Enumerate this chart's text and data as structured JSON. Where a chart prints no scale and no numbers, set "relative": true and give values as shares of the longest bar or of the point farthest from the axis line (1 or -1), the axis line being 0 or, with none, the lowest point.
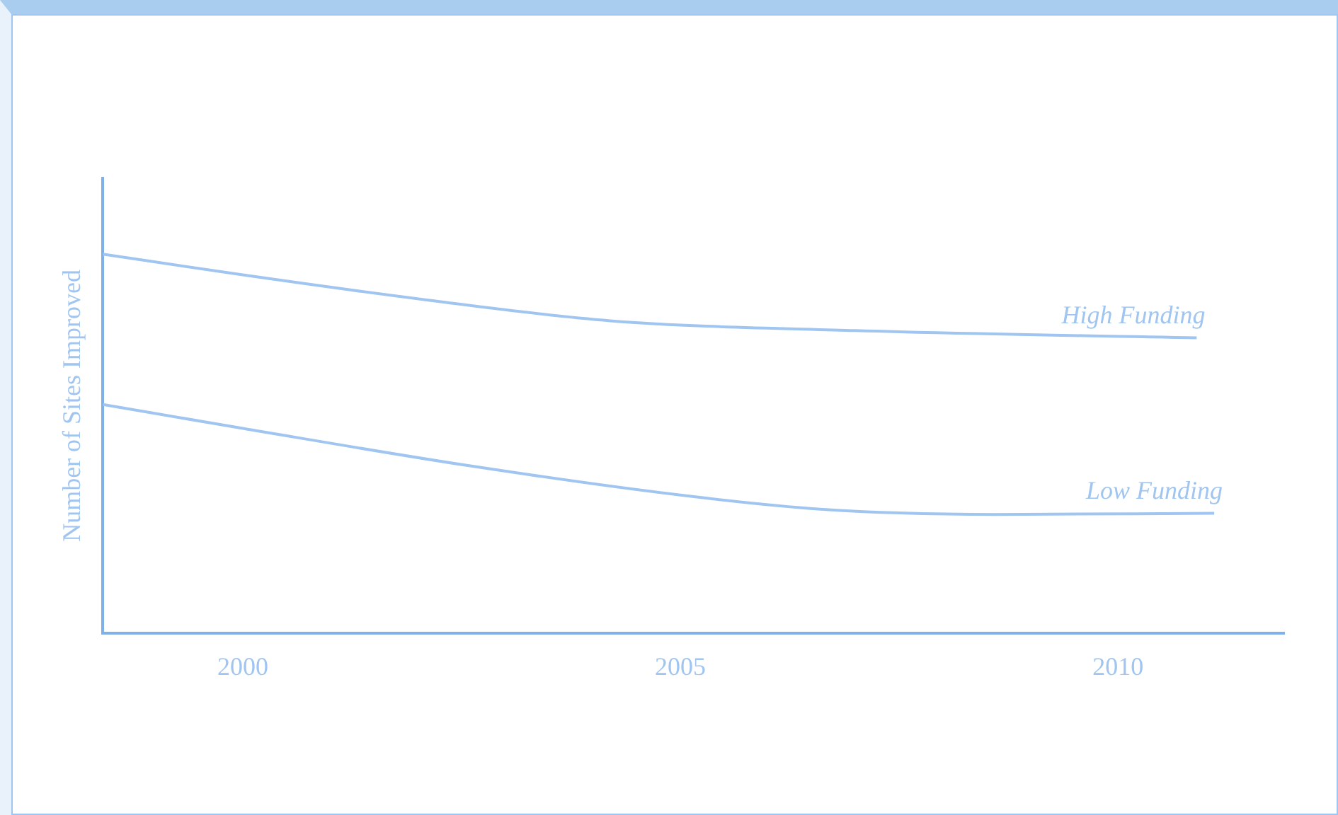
{
  "chart_data": {
    "type": "line",
    "ylabel": "Number of Sites Improved",
    "relative": true,
    "xlim": [
      1998.4,
      2011.9
    ],
    "xticks": [
      2000,
      2005,
      2010
    ],
    "legend": false,
    "grid": false,
    "marker": "none",
    "line_style": "solid",
    "series": [
      {
        "name": "High Funding",
        "color": "#9fc5f0",
        "x": [
          1998.4,
          2000,
          2002.1,
          2004.2,
          2007.0,
          2010.9
        ],
        "values": [
          1,
          0.945,
          0.879,
          0.824,
          0.798,
          0.779
        ]
      },
      {
        "name": "Low Funding",
        "color": "#9fc5f0",
        "x": [
          1998.4,
          2000,
          2002.6,
          2005.0,
          2006.6,
          2008.6,
          2011.1
        ],
        "values": [
          0.603,
          0.54,
          0.441,
          0.364,
          0.327,
          0.313,
          0.316
        ]
      }
    ]
  }
}
